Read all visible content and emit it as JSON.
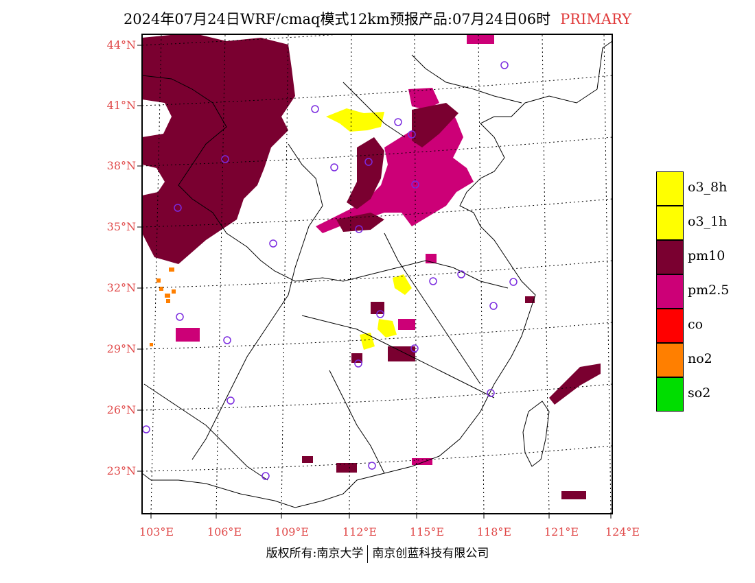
{
  "title": {
    "main": "2024年07月24日WRF/cmaq模式12km预报产品:07月24日06时",
    "tag": "PRIMARY"
  },
  "colors": {
    "label_red": "#e04848",
    "o3_8h": "#ffff00",
    "o3_1h": "#ffff00",
    "pm10": "#7a0030",
    "pm2_5": "#cc0077",
    "co": "#ff0000",
    "no2": "#ff7f00",
    "so2": "#00dd00",
    "station_circle": "#7a2adf"
  },
  "latitude_labels": [
    "44°N",
    "41°N",
    "38°N",
    "35°N",
    "32°N",
    "29°N",
    "26°N",
    "23°N"
  ],
  "longitude_labels": [
    "103°E",
    "106°E",
    "109°E",
    "112°E",
    "115°E",
    "118°E",
    "121°E",
    "124°E"
  ],
  "legend": [
    {
      "label": "o3_8h",
      "color": "#ffff00"
    },
    {
      "label": "o3_1h",
      "color": "#ffff00"
    },
    {
      "label": "pm10",
      "color": "#7a0030"
    },
    {
      "label": "pm2.5",
      "color": "#cc0077"
    },
    {
      "label": "co",
      "color": "#ff0000"
    },
    {
      "label": "no2",
      "color": "#ff7f00"
    },
    {
      "label": "so2",
      "color": "#00dd00"
    }
  ],
  "footer": {
    "left": "版权所有:南京大学",
    "right": "南京创蓝科技有限公司"
  }
}
